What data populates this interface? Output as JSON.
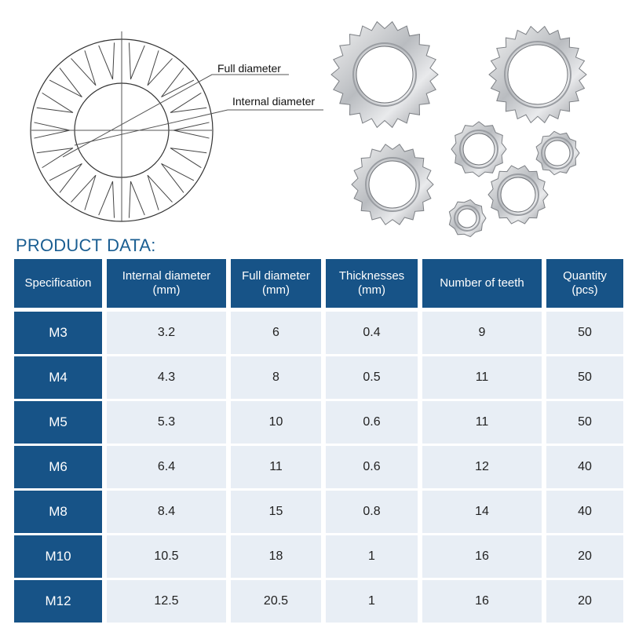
{
  "diagram": {
    "labels": {
      "full": "Full diameter",
      "internal": "Internal diameter"
    }
  },
  "section_title": "PRODUCT DATA:",
  "table": {
    "headers": [
      [
        "Specification"
      ],
      [
        "Internal diameter",
        "(mm)"
      ],
      [
        "Full diameter",
        "(mm)"
      ],
      [
        "Thicknesses",
        "(mm)"
      ],
      [
        "Number of teeth"
      ],
      [
        "Quantity",
        "(pcs)"
      ]
    ],
    "rows": [
      [
        "M3",
        "3.2",
        "6",
        "0.4",
        "9",
        "50"
      ],
      [
        "M4",
        "4.3",
        "8",
        "0.5",
        "11",
        "50"
      ],
      [
        "M5",
        "5.3",
        "10",
        "0.6",
        "11",
        "50"
      ],
      [
        "M6",
        "6.4",
        "11",
        "0.6",
        "12",
        "40"
      ],
      [
        "M8",
        "8.4",
        "15",
        "0.8",
        "14",
        "40"
      ],
      [
        "M10",
        "10.5",
        "18",
        "1",
        "16",
        "20"
      ],
      [
        "M12",
        "12.5",
        "20.5",
        "1",
        "16",
        "20"
      ]
    ]
  },
  "colors": {
    "header_bg": "#175387",
    "cell_bg": "#e8eef5",
    "title": "#1a5e92"
  }
}
